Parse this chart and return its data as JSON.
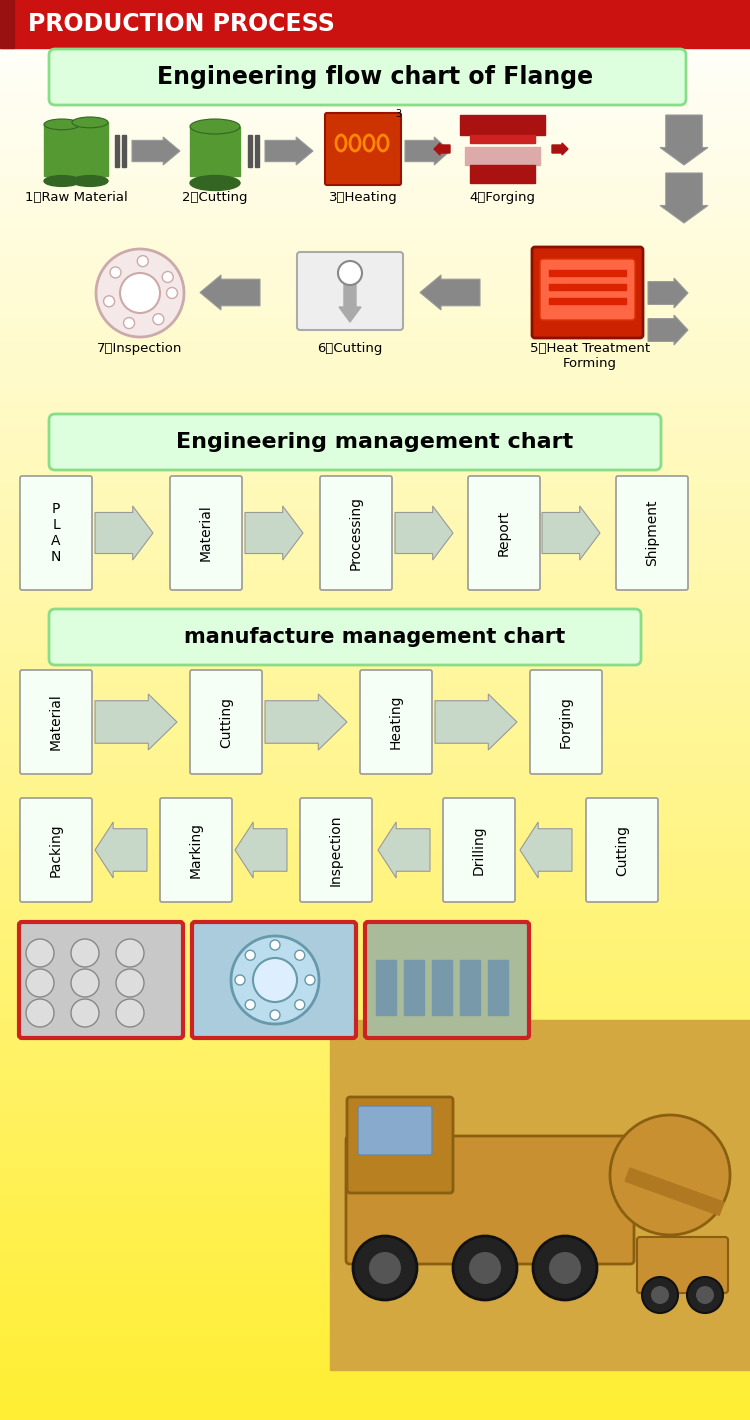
{
  "title_banner": "PRODUCTION PROCESS",
  "title_banner_bg": "#CC1111",
  "title_banner_text_color": "#FFFFFF",
  "section1_title": "Engineering flow chart of Flange",
  "section2_title": "Engineering management chart",
  "section3_title": "manufacture management chart",
  "flow1_labels": [
    "1、Raw Material",
    "2、Cutting",
    "3、Heating",
    "4、Forging"
  ],
  "flow2_labels": [
    "7、Inspection",
    "6、Cutting",
    "5、Heat Treatment\nForming"
  ],
  "mgmt1_labels": [
    "P\nL\nA\nN",
    "Material",
    "Processing",
    "Report",
    "Shipment"
  ],
  "mgmt2_row1_labels": [
    "Material",
    "Cutting",
    "Heating",
    "Forging"
  ],
  "mgmt2_row2_labels": [
    "Packing",
    "Marking",
    "Inspection",
    "Drilling",
    "Cutting"
  ],
  "section1_title_bg": "#DDFFDD",
  "section1_title_border": "#88DD88",
  "section2_title_bg": "#DDFFDD",
  "section2_title_border": "#88DD88",
  "section3_title_bg": "#DDFFDD",
  "section3_title_border": "#88DD88",
  "box_bg": "#F5FFF5",
  "box_border": "#999999",
  "arrow_fwd_color": "#C8D8C8",
  "arrow_bwd_color": "#C8D8C8",
  "arrow_dark": "#888888",
  "cyl_green": "#559933",
  "cyl_dark": "#336622",
  "heat_color": "#DD3300",
  "forge_color": "#CC2211",
  "ht_color": "#CC2200",
  "bg_white": "#FFFFFF",
  "bg_yellow": "#FFEE33",
  "banner_left_strip": "#991111",
  "photo_border": "#CC2222"
}
